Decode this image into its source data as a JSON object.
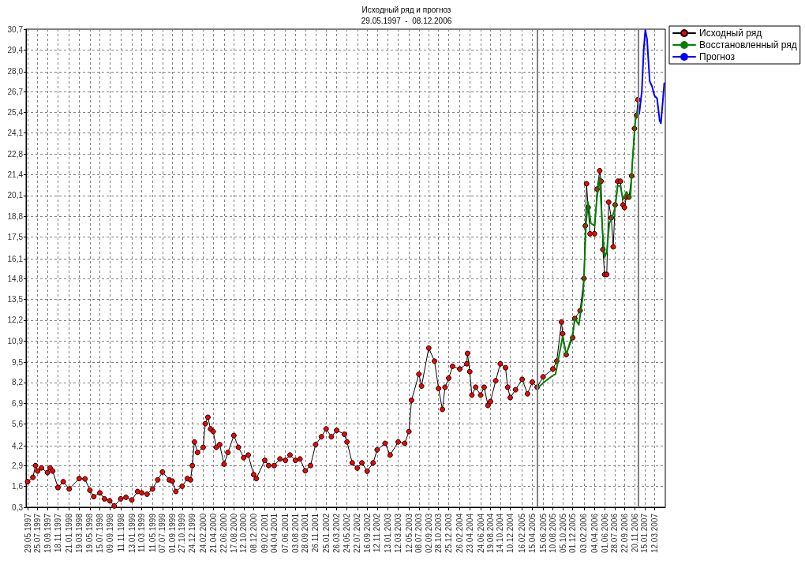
{
  "chart_data": {
    "type": "line",
    "title": "Исходный ряд и прогноз",
    "subtitle": "29.05.1997  -  08.12.2006",
    "xlim": [
      "1997-05-20",
      "2007-05-13"
    ],
    "xticks": [
      {
        "value": "1997-05-29",
        "label": "29.05.1997"
      },
      {
        "value": "1997-07-25",
        "label": "25.07.1997"
      },
      {
        "value": "1997-09-19",
        "label": "19.09.1997"
      },
      {
        "value": "1997-11-18",
        "label": "18.11.1997"
      },
      {
        "value": "1998-01-21",
        "label": "21.01.1998"
      },
      {
        "value": "1998-03-19",
        "label": "19.03.1998"
      },
      {
        "value": "1998-05-19",
        "label": "19.05.1998"
      },
      {
        "value": "1998-07-15",
        "label": "15.07.1998"
      },
      {
        "value": "1998-09-09",
        "label": "09.09.1998"
      },
      {
        "value": "1998-11-11",
        "label": "11.11.1998"
      },
      {
        "value": "1999-01-13",
        "label": "13.01.1999"
      },
      {
        "value": "1999-03-11",
        "label": "11.03.1999"
      },
      {
        "value": "1999-05-11",
        "label": "11.05.1999"
      },
      {
        "value": "1999-07-07",
        "label": "07.07.1999"
      },
      {
        "value": "1999-09-01",
        "label": "01.09.1999"
      },
      {
        "value": "1999-10-27",
        "label": "27.10.1999"
      },
      {
        "value": "1999-12-24",
        "label": "24.12.1999"
      },
      {
        "value": "2000-02-24",
        "label": "24.02.2000"
      },
      {
        "value": "2000-04-21",
        "label": "21.04.2000"
      },
      {
        "value": "2000-06-22",
        "label": "22.06.2000"
      },
      {
        "value": "2000-08-17",
        "label": "17.08.2000"
      },
      {
        "value": "2000-10-12",
        "label": "12.10.2000"
      },
      {
        "value": "2000-12-08",
        "label": "08.12.2000"
      },
      {
        "value": "2001-02-09",
        "label": "09.02.2001"
      },
      {
        "value": "2001-04-04",
        "label": "04.04.2001"
      },
      {
        "value": "2001-06-07",
        "label": "07.06.2001"
      },
      {
        "value": "2001-08-03",
        "label": "03.08.2001"
      },
      {
        "value": "2001-09-28",
        "label": "28.09.2001"
      },
      {
        "value": "2001-11-26",
        "label": "26.11.2001"
      },
      {
        "value": "2002-01-25",
        "label": "25.01.2002"
      },
      {
        "value": "2002-03-26",
        "label": "26.03.2002"
      },
      {
        "value": "2002-05-24",
        "label": "24.05.2002"
      },
      {
        "value": "2002-07-22",
        "label": "22.07.2002"
      },
      {
        "value": "2002-09-16",
        "label": "16.09.2002"
      },
      {
        "value": "2002-11-12",
        "label": "12.11.2002"
      },
      {
        "value": "2003-01-13",
        "label": "13.01.2003"
      },
      {
        "value": "2003-03-12",
        "label": "12.03.2003"
      },
      {
        "value": "2003-05-12",
        "label": "12.05.2003"
      },
      {
        "value": "2003-07-08",
        "label": "08.07.2003"
      },
      {
        "value": "2003-09-02",
        "label": "02.09.2003"
      },
      {
        "value": "2003-10-28",
        "label": "28.10.2003"
      },
      {
        "value": "2003-12-25",
        "label": "25.12.2003"
      },
      {
        "value": "2004-02-26",
        "label": "26.02.2004"
      },
      {
        "value": "2004-04-23",
        "label": "23.04.2004"
      },
      {
        "value": "2004-06-24",
        "label": "24.06.2004"
      },
      {
        "value": "2004-08-19",
        "label": "19.08.2004"
      },
      {
        "value": "2004-10-14",
        "label": "14.10.2004"
      },
      {
        "value": "2004-12-10",
        "label": "10.12.2004"
      },
      {
        "value": "2005-02-16",
        "label": "16.02.2005"
      },
      {
        "value": "2005-04-15",
        "label": "15.04.2005"
      },
      {
        "value": "2005-06-15",
        "label": "15.06.2005"
      },
      {
        "value": "2005-08-10",
        "label": "10.08.2005"
      },
      {
        "value": "2005-10-05",
        "label": "05.10.2005"
      },
      {
        "value": "2005-12-01",
        "label": "01.12.2005"
      },
      {
        "value": "2006-02-03",
        "label": "03.02.2006"
      },
      {
        "value": "2006-04-04",
        "label": "04.04.2006"
      },
      {
        "value": "2006-06-01",
        "label": "01.06.2006"
      },
      {
        "value": "2006-07-28",
        "label": "28.07.2006"
      },
      {
        "value": "2006-09-22",
        "label": "22.09.2006"
      },
      {
        "value": "2006-11-20",
        "label": "20.11.2006"
      },
      {
        "value": "2007-01-15",
        "label": "15.01.2007"
      },
      {
        "value": "2007-03-12",
        "label": "12.03.2007"
      }
    ],
    "ylim": [
      0.3,
      30.7
    ],
    "yticks": [
      {
        "value": 0.3,
        "label": "0,3"
      },
      {
        "value": 1.622,
        "label": "1,6"
      },
      {
        "value": 2.943,
        "label": "2,9"
      },
      {
        "value": 4.2,
        "label": "4,2"
      },
      {
        "value": 5.587,
        "label": "5,6"
      },
      {
        "value": 6.909,
        "label": "6,9"
      },
      {
        "value": 8.23,
        "label": "8,2"
      },
      {
        "value": 9.5,
        "label": "9,5"
      },
      {
        "value": 10.874,
        "label": "10,9"
      },
      {
        "value": 12.196,
        "label": "12,2"
      },
      {
        "value": 13.517,
        "label": "13,5"
      },
      {
        "value": 14.839,
        "label": "14,8"
      },
      {
        "value": 16.1,
        "label": "16,1"
      },
      {
        "value": 17.483,
        "label": "17,5"
      },
      {
        "value": 18.804,
        "label": "18,8"
      },
      {
        "value": 20.126,
        "label": "20,1"
      },
      {
        "value": 21.448,
        "label": "21,4"
      },
      {
        "value": 22.77,
        "label": "22,8"
      },
      {
        "value": 24.091,
        "label": "24,1"
      },
      {
        "value": 25.413,
        "label": "25,4"
      },
      {
        "value": 26.735,
        "label": "26,7"
      },
      {
        "value": 28.0,
        "label": "28,0"
      },
      {
        "value": 29.378,
        "label": "29,4"
      },
      {
        "value": 30.7,
        "label": "30,7"
      }
    ],
    "grid": true,
    "legend": "top right",
    "marker": "circle",
    "line_style": "solid",
    "ref_lines": [
      {
        "axis": "x",
        "value": "2005-05-11",
        "color": "#808080"
      },
      {
        "axis": "x",
        "value": "2006-12-08",
        "color": "#808080"
      }
    ],
    "series": [
      {
        "name": "Исходный ряд",
        "color": "#000000",
        "x": [
          "1997-05-29",
          "1997-06-28",
          "1997-07-13",
          "1997-07-25",
          "1997-08-16",
          "1997-09-19",
          "1997-10-04",
          "1997-10-19",
          "1997-11-18",
          "1997-12-18",
          "1998-01-21",
          "1998-03-19",
          "1998-04-21",
          "1998-05-19",
          "1998-06-10",
          "1998-07-15",
          "1998-08-10",
          "1998-09-09",
          "1998-10-05",
          "1998-11-11",
          "1998-12-11",
          "1999-01-13",
          "1999-02-15",
          "1999-03-11",
          "1999-04-10",
          "1999-05-11",
          "1999-06-10",
          "1999-07-07",
          "1999-08-15",
          "1999-09-01",
          "1999-09-21",
          "1999-10-27",
          "1999-11-26",
          "1999-12-14",
          "1999-12-24",
          "2000-01-05",
          "2000-01-23",
          "2000-02-24",
          "2000-03-07",
          "2000-03-22",
          "2000-04-06",
          "2000-04-21",
          "2000-05-09",
          "2000-05-28",
          "2000-06-22",
          "2000-07-14",
          "2000-08-17",
          "2000-09-12",
          "2000-10-12",
          "2000-11-07",
          "2000-12-08",
          "2000-12-23",
          "2001-02-09",
          "2001-03-03",
          "2001-04-04",
          "2001-05-07",
          "2001-06-07",
          "2001-07-03",
          "2001-08-03",
          "2001-08-29",
          "2001-09-28",
          "2001-10-28",
          "2001-11-26",
          "2001-12-29",
          "2002-01-25",
          "2002-02-24",
          "2002-03-26",
          "2002-05-09",
          "2002-05-24",
          "2002-06-23",
          "2002-07-22",
          "2002-08-17",
          "2002-09-16",
          "2002-10-20",
          "2002-11-12",
          "2002-12-27",
          "2003-01-25",
          "2003-03-12",
          "2003-04-18",
          "2003-05-12",
          "2003-05-27",
          "2003-07-08",
          "2003-07-23",
          "2003-09-02",
          "2003-10-05",
          "2003-10-28",
          "2003-11-19",
          "2003-12-04",
          "2003-12-25",
          "2004-01-16",
          "2004-02-26",
          "2004-04-06",
          "2004-04-10",
          "2004-04-23",
          "2004-05-05",
          "2004-05-27",
          "2004-06-24",
          "2004-07-14",
          "2004-08-05",
          "2004-08-19",
          "2004-09-18",
          "2004-10-14",
          "2004-11-13",
          "2004-11-25",
          "2004-12-10",
          "2005-01-09",
          "2005-02-16",
          "2005-03-18",
          "2005-04-15",
          "2005-05-12",
          "2005-06-15",
          "2005-08-10",
          "2005-09-01",
          "2005-09-28",
          "2005-10-05",
          "2005-10-25",
          "2005-12-01",
          "2005-12-13",
          "2006-01-12",
          "2006-02-03",
          "2006-02-11",
          "2006-02-18",
          "2006-02-27",
          "2006-03-10",
          "2006-04-04",
          "2006-04-19",
          "2006-05-04",
          "2006-05-12",
          "2006-05-22",
          "2006-06-01",
          "2006-06-13",
          "2006-06-24",
          "2006-07-09",
          "2006-07-20",
          "2006-07-31",
          "2006-08-15",
          "2006-08-30",
          "2006-09-14",
          "2006-09-22",
          "2006-10-03",
          "2006-10-18",
          "2006-11-02",
          "2006-11-18",
          "2006-11-30",
          "2006-12-08"
        ],
        "values": [
          1.92,
          2.2,
          2.95,
          2.6,
          2.8,
          2.5,
          2.8,
          2.6,
          1.55,
          1.92,
          1.46,
          2.12,
          2.1,
          1.38,
          0.97,
          1.21,
          0.83,
          0.71,
          0.38,
          0.83,
          0.93,
          0.76,
          1.3,
          1.21,
          1.13,
          1.46,
          2.04,
          2.54,
          2.04,
          1.96,
          1.3,
          1.63,
          2.12,
          2.04,
          2.95,
          4.45,
          3.78,
          4.11,
          5.61,
          6.02,
          5.28,
          5.11,
          4.11,
          4.28,
          3.04,
          3.78,
          4.86,
          4.11,
          3.45,
          3.62,
          2.37,
          2.12,
          3.28,
          2.95,
          2.95,
          3.37,
          3.28,
          3.62,
          3.28,
          3.37,
          2.62,
          2.95,
          4.28,
          4.78,
          5.28,
          4.78,
          5.19,
          4.94,
          4.45,
          3.12,
          2.79,
          3.12,
          2.59,
          3.12,
          3.95,
          4.36,
          3.62,
          4.45,
          4.36,
          5.11,
          7.1,
          8.76,
          8.0,
          10.42,
          9.59,
          7.85,
          6.52,
          7.93,
          8.51,
          9.26,
          9.09,
          9.42,
          10.08,
          8.92,
          7.43,
          7.93,
          7.43,
          7.93,
          6.77,
          7.02,
          8.34,
          9.42,
          9.17,
          7.93,
          7.27,
          7.77,
          8.43,
          7.51,
          8.26,
          7.93,
          8.59,
          9.09,
          9.59,
          12.08,
          11.33,
          10.0,
          11.08,
          12.3,
          12.8,
          14.85,
          18.2,
          20.87,
          19.36,
          17.69,
          17.69,
          20.53,
          21.7,
          21.03,
          16.69,
          15.1,
          15.1,
          19.7,
          18.7,
          16.86,
          19.53,
          21.03,
          21.03,
          19.53,
          19.36,
          20.03,
          20.03,
          21.37,
          24.38,
          25.22,
          26.22
        ]
      },
      {
        "name": "Восстановленный ряд",
        "color": "#008000",
        "marker": "none",
        "x": [
          "2005-05-12",
          "2005-06-22",
          "2005-08-10",
          "2005-08-25",
          "2005-09-08",
          "2005-10-05",
          "2005-10-25",
          "2005-12-01",
          "2005-12-13",
          "2006-01-05",
          "2006-01-28",
          "2006-02-03",
          "2006-02-15",
          "2006-02-27",
          "2006-03-14",
          "2006-04-04",
          "2006-04-19",
          "2006-05-04",
          "2006-05-19",
          "2006-06-01",
          "2006-06-13",
          "2006-06-28",
          "2006-07-13",
          "2006-07-31",
          "2006-08-15",
          "2006-08-30",
          "2006-09-14",
          "2006-10-03",
          "2006-10-26",
          "2006-11-06",
          "2006-11-24",
          "2006-12-08"
        ],
        "values": [
          7.85,
          8.26,
          8.68,
          8.76,
          9.59,
          11.17,
          10.0,
          11.33,
          12.3,
          11.9,
          13.73,
          14.85,
          18.36,
          19.7,
          18.36,
          18.2,
          20.03,
          21.29,
          18.03,
          16.19,
          16.52,
          18.36,
          18.7,
          19.36,
          20.78,
          20.7,
          19.86,
          20.36,
          19.95,
          22.2,
          25.05,
          25.55
        ]
      },
      {
        "name": "Прогноз",
        "color": "#0000ff",
        "marker": "none",
        "x": [
          "2006-12-08",
          "2006-12-15",
          "2006-12-30",
          "2007-01-10",
          "2007-01-19",
          "2007-01-29",
          "2007-02-13",
          "2007-02-27",
          "2007-03-12",
          "2007-03-27",
          "2007-04-11",
          "2007-04-18",
          "2007-04-30",
          "2007-05-07"
        ],
        "values": [
          25.55,
          25.3,
          26.72,
          29.4,
          30.65,
          30.06,
          27.39,
          27.05,
          26.47,
          26.3,
          24.88,
          24.71,
          26.3,
          27.26
        ]
      }
    ]
  }
}
